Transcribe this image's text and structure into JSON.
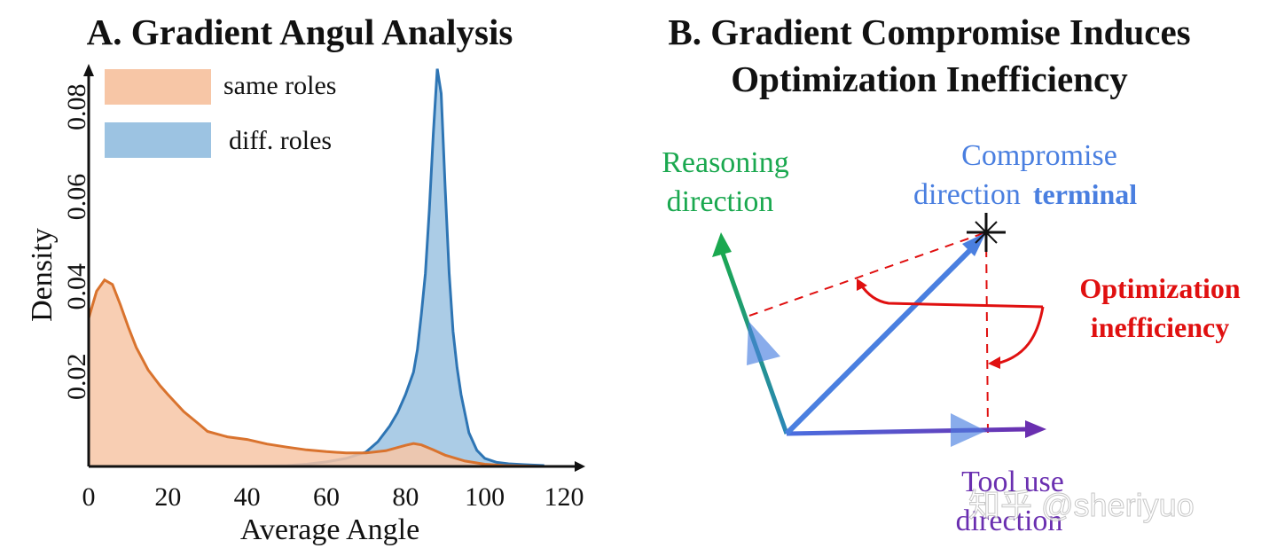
{
  "panel_a": {
    "title": "A. Gradient Angul Analysis",
    "chart_data": {
      "type": "area",
      "title": "A. Gradient Angul Analysis",
      "xlabel": "Average Angle",
      "ylabel": "Density",
      "xlim": [
        0,
        120
      ],
      "ylim": [
        0,
        0.09
      ],
      "xticks": [
        "0",
        "20",
        "40",
        "60",
        "80",
        "100",
        "120"
      ],
      "yticks": [
        "0.02",
        "0.04",
        "0.06",
        "0.08"
      ],
      "legend_position": "top-left",
      "grid": false,
      "series": [
        {
          "name": "same roles",
          "fill": "#f7c6a6",
          "line": "#d9732e",
          "points": [
            [
              0,
              0.033
            ],
            [
              2,
              0.039
            ],
            [
              4,
              0.0415
            ],
            [
              6,
              0.0405
            ],
            [
              8,
              0.036
            ],
            [
              10,
              0.031
            ],
            [
              12,
              0.0265
            ],
            [
              15,
              0.0215
            ],
            [
              18,
              0.018
            ],
            [
              20,
              0.016
            ],
            [
              24,
              0.0122
            ],
            [
              28,
              0.0093
            ],
            [
              30,
              0.0078
            ],
            [
              35,
              0.0066
            ],
            [
              40,
              0.006
            ],
            [
              45,
              0.005
            ],
            [
              50,
              0.0043
            ],
            [
              55,
              0.0037
            ],
            [
              60,
              0.0033
            ],
            [
              65,
              0.003
            ],
            [
              70,
              0.003
            ],
            [
              75,
              0.0035
            ],
            [
              80,
              0.0047
            ],
            [
              82,
              0.0051
            ],
            [
              84,
              0.0048
            ],
            [
              87,
              0.0037
            ],
            [
              90,
              0.0025
            ],
            [
              95,
              0.0012
            ],
            [
              100,
              0.0005
            ],
            [
              105,
              0.0002
            ],
            [
              110,
              0.0001
            ],
            [
              115,
              0.0
            ]
          ]
        },
        {
          "name": "diff. roles",
          "fill": "#9cc3e2",
          "line": "#2e75b4",
          "points": [
            [
              40,
              0.0
            ],
            [
              50,
              0.0002
            ],
            [
              55,
              0.0005
            ],
            [
              60,
              0.001
            ],
            [
              65,
              0.0018
            ],
            [
              70,
              0.0032
            ],
            [
              73,
              0.0055
            ],
            [
              76,
              0.009
            ],
            [
              78,
              0.012
            ],
            [
              80,
              0.016
            ],
            [
              82,
              0.021
            ],
            [
              83,
              0.026
            ],
            [
              84,
              0.034
            ],
            [
              85,
              0.043
            ],
            [
              86,
              0.057
            ],
            [
              87,
              0.074
            ],
            [
              88,
              0.0885
            ],
            [
              89,
              0.083
            ],
            [
              90,
              0.062
            ],
            [
              91,
              0.043
            ],
            [
              92,
              0.03
            ],
            [
              93,
              0.022
            ],
            [
              94,
              0.016
            ],
            [
              96,
              0.0075
            ],
            [
              98,
              0.0036
            ],
            [
              100,
              0.0018
            ],
            [
              103,
              0.0009
            ],
            [
              106,
              0.0006
            ],
            [
              110,
              0.0004
            ],
            [
              115,
              0.0002
            ]
          ]
        }
      ]
    }
  },
  "panel_b": {
    "title_line1": "B. Gradient Compromise Induces",
    "title_line2": "Optimization Inefficiency",
    "reasoning_line1": "Reasoning",
    "reasoning_line2": "direction",
    "compromise_line1": "Compromise",
    "compromise_line2": "direction",
    "compromise_bold": "terminal",
    "tool_line1": "Tool use",
    "tool_line2": "direction",
    "inefficiency_line1": "Optimization",
    "inefficiency_line2": "inefficiency",
    "colors": {
      "green": "#1aa84f",
      "blue": "#4a7fe0",
      "purple": "#6a2fb0",
      "red": "#e01010",
      "teal": "#2a8fa8"
    }
  },
  "watermark": "知乎 @sheriyuo"
}
